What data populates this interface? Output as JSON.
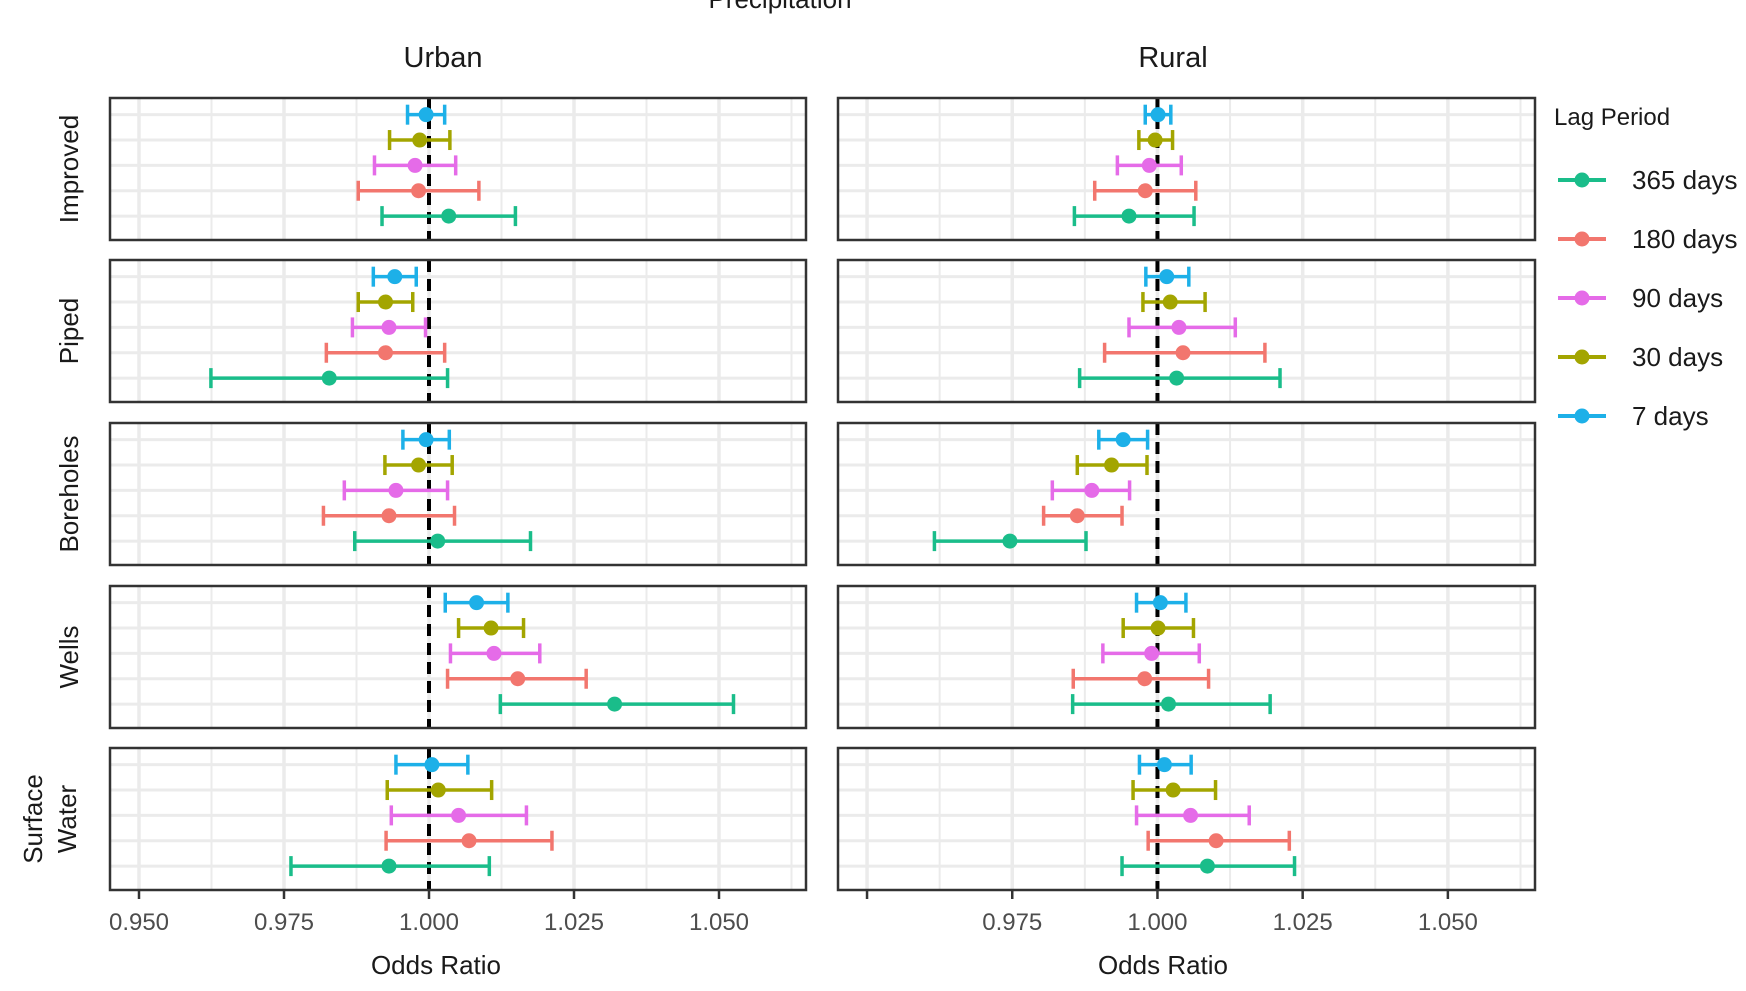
{
  "chart_data": {
    "type": "forest",
    "title": "Precipitation",
    "columns": [
      "Urban",
      "Rural"
    ],
    "rows": [
      "Improved",
      "Piped",
      "Boreholes",
      "Wells",
      "Surface Water"
    ],
    "xlabel": "Odds Ratio",
    "xlim": [
      0.945,
      1.065
    ],
    "reference_line": 1.0,
    "x_ticks": {
      "urban": [
        "0.950",
        "0.975",
        "1.000",
        "1.025",
        "1.050"
      ],
      "rural": [
        "0.975",
        "1.000",
        "1.025",
        "1.050"
      ]
    },
    "legend": {
      "title": "Lag Period",
      "position": "right",
      "items": [
        {
          "name": "365 days",
          "color": "#1ABD8A"
        },
        {
          "name": "180 days",
          "color": "#F2766E"
        },
        {
          "name": "90 days",
          "color": "#E56BE8"
        },
        {
          "name": "30 days",
          "color": "#A3A500"
        },
        {
          "name": "7 days",
          "color": "#1DB0E8"
        }
      ]
    },
    "series_order_top_to_bottom": [
      "7 days",
      "30 days",
      "90 days",
      "180 days",
      "365 days"
    ],
    "panels": {
      "Urban": {
        "Improved": [
          [
            0.9995,
            0.9963,
            1.0027
          ],
          [
            0.9984,
            0.9932,
            1.0036
          ],
          [
            0.9976,
            0.9906,
            1.0046
          ],
          [
            0.9982,
            0.9878,
            1.0086
          ],
          [
            1.0034,
            0.9919,
            1.0149
          ]
        ],
        "Piped": [
          [
            0.9941,
            0.9904,
            0.9978
          ],
          [
            0.9925,
            0.9878,
            0.9972
          ],
          [
            0.9931,
            0.9868,
            0.9994
          ],
          [
            0.9925,
            0.9823,
            1.0027
          ],
          [
            0.9828,
            0.9624,
            1.0032
          ]
        ],
        "Boreholes": [
          [
            0.9995,
            0.9955,
            1.0035
          ],
          [
            0.9982,
            0.9924,
            1.004
          ],
          [
            0.9943,
            0.9854,
            1.0032
          ],
          [
            0.9931,
            0.9818,
            1.0044
          ],
          [
            1.0015,
            0.9872,
            1.0175
          ]
        ],
        "Wells": [
          [
            1.0082,
            1.0028,
            1.0136
          ],
          [
            1.0107,
            1.0051,
            1.0163
          ],
          [
            1.0112,
            1.0037,
            1.0191
          ],
          [
            1.0153,
            1.0032,
            1.0271
          ],
          [
            1.032,
            1.0123,
            1.0525
          ]
        ],
        "Surface Water": [
          [
            1.0005,
            0.9943,
            1.0067
          ],
          [
            1.0016,
            0.9928,
            1.0108
          ],
          [
            1.0051,
            0.9935,
            1.0168
          ],
          [
            1.0069,
            0.9926,
            1.0212
          ],
          [
            0.9931,
            0.9762,
            1.0104
          ]
        ]
      },
      "Rural": {
        "Improved": [
          [
            1.0001,
            0.9979,
            1.0023
          ],
          [
            0.9996,
            0.9968,
            1.0026
          ],
          [
            0.9986,
            0.9931,
            1.0041
          ],
          [
            0.9979,
            0.9892,
            1.0066
          ],
          [
            0.9951,
            0.9857,
            1.0063
          ]
        ],
        "Piped": [
          [
            1.0016,
            0.998,
            1.0054
          ],
          [
            1.0022,
            0.9975,
            1.0082
          ],
          [
            1.0037,
            0.9951,
            1.0134
          ],
          [
            1.0044,
            0.9909,
            1.0185
          ],
          [
            1.0033,
            0.9866,
            1.0211
          ]
        ],
        "Boreholes": [
          [
            0.9941,
            0.9899,
            0.9983
          ],
          [
            0.9921,
            0.9862,
            0.9982
          ],
          [
            0.9887,
            0.9819,
            0.9952
          ],
          [
            0.9862,
            0.9804,
            0.9939
          ],
          [
            0.9746,
            0.9616,
            0.9877
          ]
        ],
        "Wells": [
          [
            1.0005,
            0.9964,
            1.0049
          ],
          [
            1.0001,
            0.9941,
            1.0062
          ],
          [
            0.999,
            0.9906,
            1.0072
          ],
          [
            0.9978,
            0.9855,
            1.0088
          ],
          [
            1.0019,
            0.9854,
            1.0194
          ]
        ],
        "Surface Water": [
          [
            1.0012,
            0.9969,
            1.0058
          ],
          [
            1.0027,
            0.9958,
            1.01
          ],
          [
            1.0057,
            0.9964,
            1.0158
          ],
          [
            1.0101,
            0.9984,
            1.0227
          ],
          [
            1.0086,
            0.9939,
            1.0236
          ]
        ]
      }
    }
  }
}
